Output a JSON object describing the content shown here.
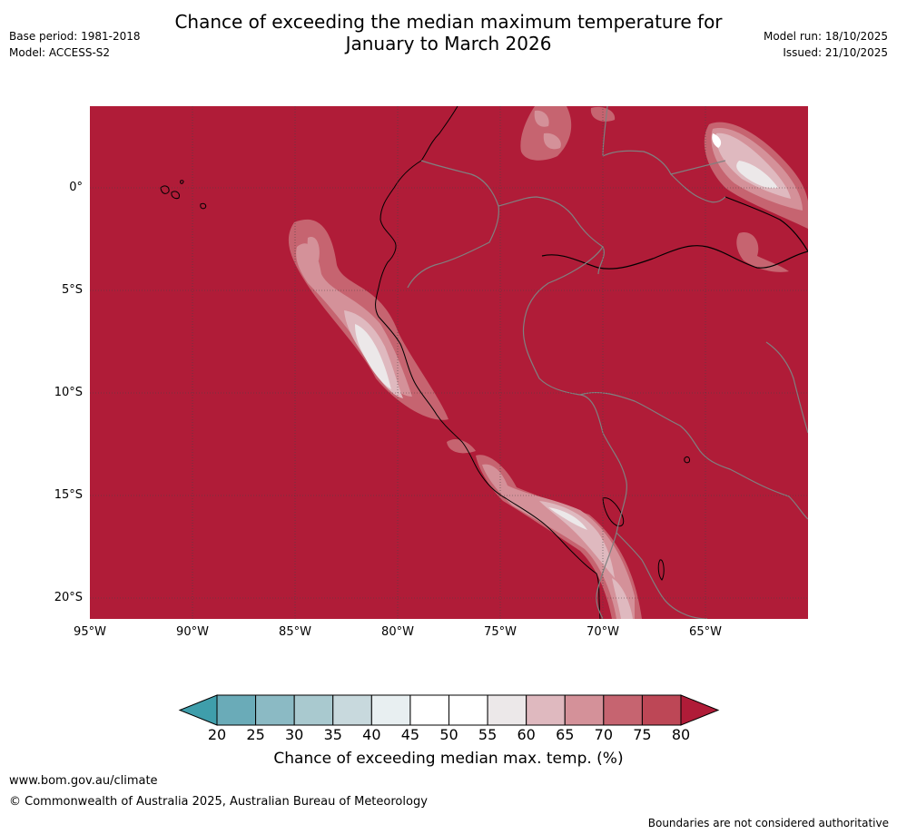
{
  "header": {
    "title_line1": "Chance of exceeding the median maximum temperature for",
    "title_line2": "January to March 2026",
    "base_period": "Base period: 1981-2018",
    "model": "Model: ACCESS-S2",
    "model_run": "Model run: 18/10/2025",
    "issued": "Issued: 21/10/2025"
  },
  "map": {
    "lat_labels": [
      "0°",
      "5°S",
      "10°S",
      "15°S",
      "20°S"
    ],
    "lon_labels": [
      "95°W",
      "90°W",
      "85°W",
      "80°W",
      "75°W",
      "70°W",
      "65°W"
    ],
    "base_color": "#b01c38"
  },
  "colorbar": {
    "title": "Chance of exceeding median max. temp. (%)",
    "ticks": [
      "20",
      "25",
      "30",
      "35",
      "40",
      "45",
      "50",
      "55",
      "60",
      "65",
      "70",
      "75",
      "80"
    ],
    "colors": [
      "#6aabb8",
      "#8bbac4",
      "#a9c9cf",
      "#c8d9dd",
      "#e8eff1",
      "#ffffff",
      "#ffffff",
      "#ece8e9",
      "#dfb9bf",
      "#d49199",
      "#c66470",
      "#bd4756"
    ],
    "under_color": "#3f9eab",
    "over_color": "#b01c38"
  },
  "footer": {
    "website": "www.bom.gov.au/climate",
    "copyright": "© Commonwealth of Australia 2025, Australian Bureau of Meteorology",
    "disclaimer": "Boundaries are not considered authoritative"
  }
}
